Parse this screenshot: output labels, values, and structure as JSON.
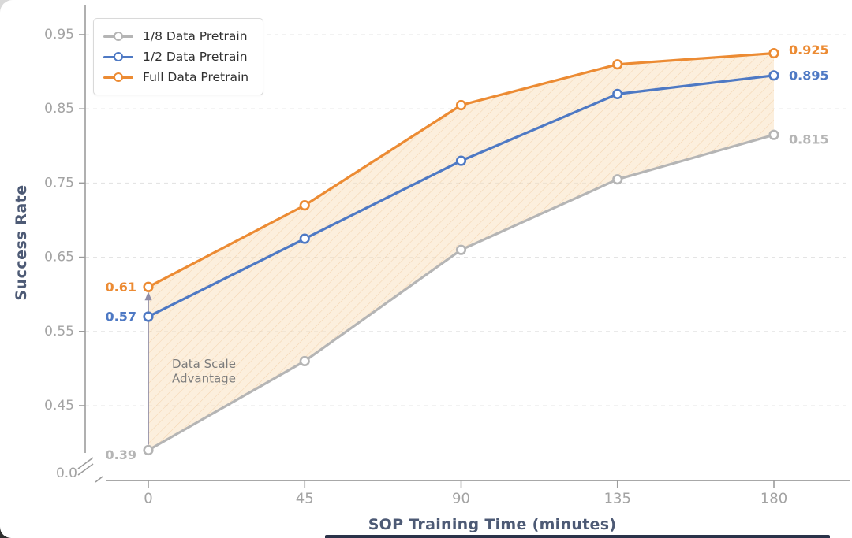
{
  "style": {
    "axis_title_color": "#4d5a75",
    "tick_label_color": "#a3a3a3",
    "spine_color": "#9c9c9c",
    "grid_color": "#e4e4e4",
    "arrow_color": "#8f8da8",
    "annotation_color": "#7d7d7d",
    "bottom_strip_color": "#2a3349"
  },
  "chart_data": {
    "type": "line",
    "title": "",
    "xlabel": "SOP Training Time (minutes)",
    "ylabel": "Success Rate",
    "x": [
      0,
      45,
      90,
      135,
      180
    ],
    "xtick_labels": [
      "0",
      "45",
      "90",
      "135",
      "180"
    ],
    "yticks": [
      0.45,
      0.55,
      0.65,
      0.75,
      0.85,
      0.95
    ],
    "ytick_labels": [
      "0.45",
      "0.55",
      "0.65",
      "0.75",
      "0.85",
      "0.95"
    ],
    "axis_break_label": "0.0",
    "grid": "horizontal-dashed",
    "legend_position": "upper-left",
    "series": [
      {
        "name": "1/8 Data Pretrain",
        "color": "#b5b5b5",
        "values": [
          0.39,
          0.51,
          0.66,
          0.755,
          0.815
        ],
        "first_value_label": "0.39",
        "last_value_label": "0.815"
      },
      {
        "name": "1/2 Data Pretrain",
        "color": "#4e79c4",
        "values": [
          0.57,
          0.675,
          0.78,
          0.87,
          0.895
        ],
        "first_value_label": "0.57",
        "last_value_label": "0.895"
      },
      {
        "name": "Full Data Pretrain",
        "color": "#ec8b33",
        "values": [
          0.61,
          0.72,
          0.855,
          0.91,
          0.925
        ],
        "first_value_label": "0.61",
        "last_value_label": "0.925"
      }
    ],
    "fill_between": {
      "upper_series": "Full Data Pretrain",
      "lower_series": "1/8 Data Pretrain",
      "fill_color": "#f9e0bb",
      "hatch_color": "#e9b478",
      "hatch": "diagonal",
      "annotation_lines": [
        "Data Scale",
        "Advantage"
      ]
    },
    "annotation_arrow": {
      "x": 0,
      "from_value": 0.39,
      "to_value": 0.61
    }
  }
}
